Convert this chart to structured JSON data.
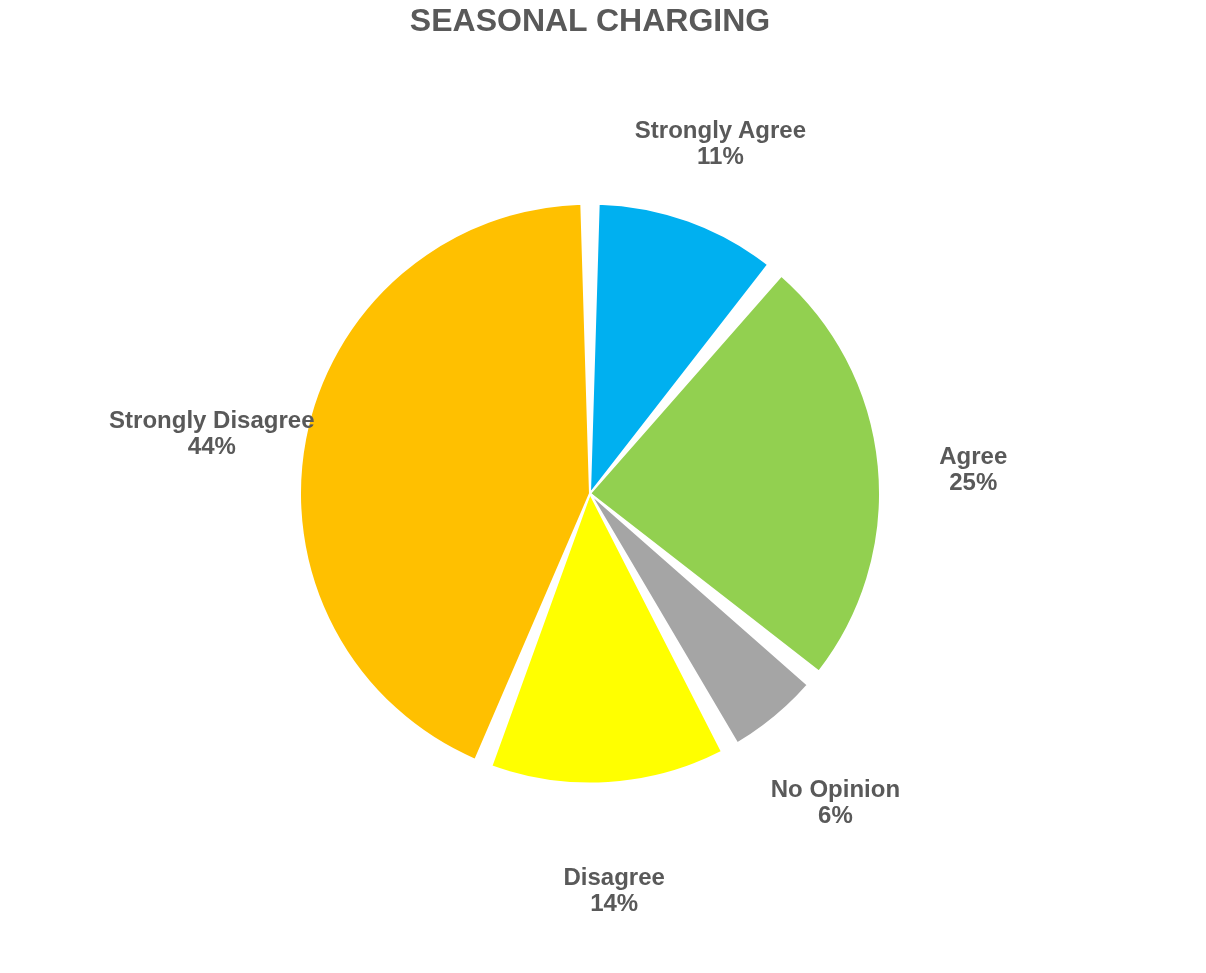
{
  "chart_data": {
    "type": "pie",
    "title": "SEASONAL CHARGING",
    "categories": [
      "Strongly Agree",
      "Agree",
      "No Opinion",
      "Disagree",
      "Strongly Disagree"
    ],
    "values": [
      11,
      25,
      6,
      14,
      44
    ],
    "colors": [
      "#00b0f0",
      "#92d050",
      "#a5a5a5",
      "#ffff00",
      "#ffc000"
    ],
    "value_labels": [
      "11%",
      "25%",
      "6%",
      "14%",
      "44%"
    ],
    "legend": false
  }
}
